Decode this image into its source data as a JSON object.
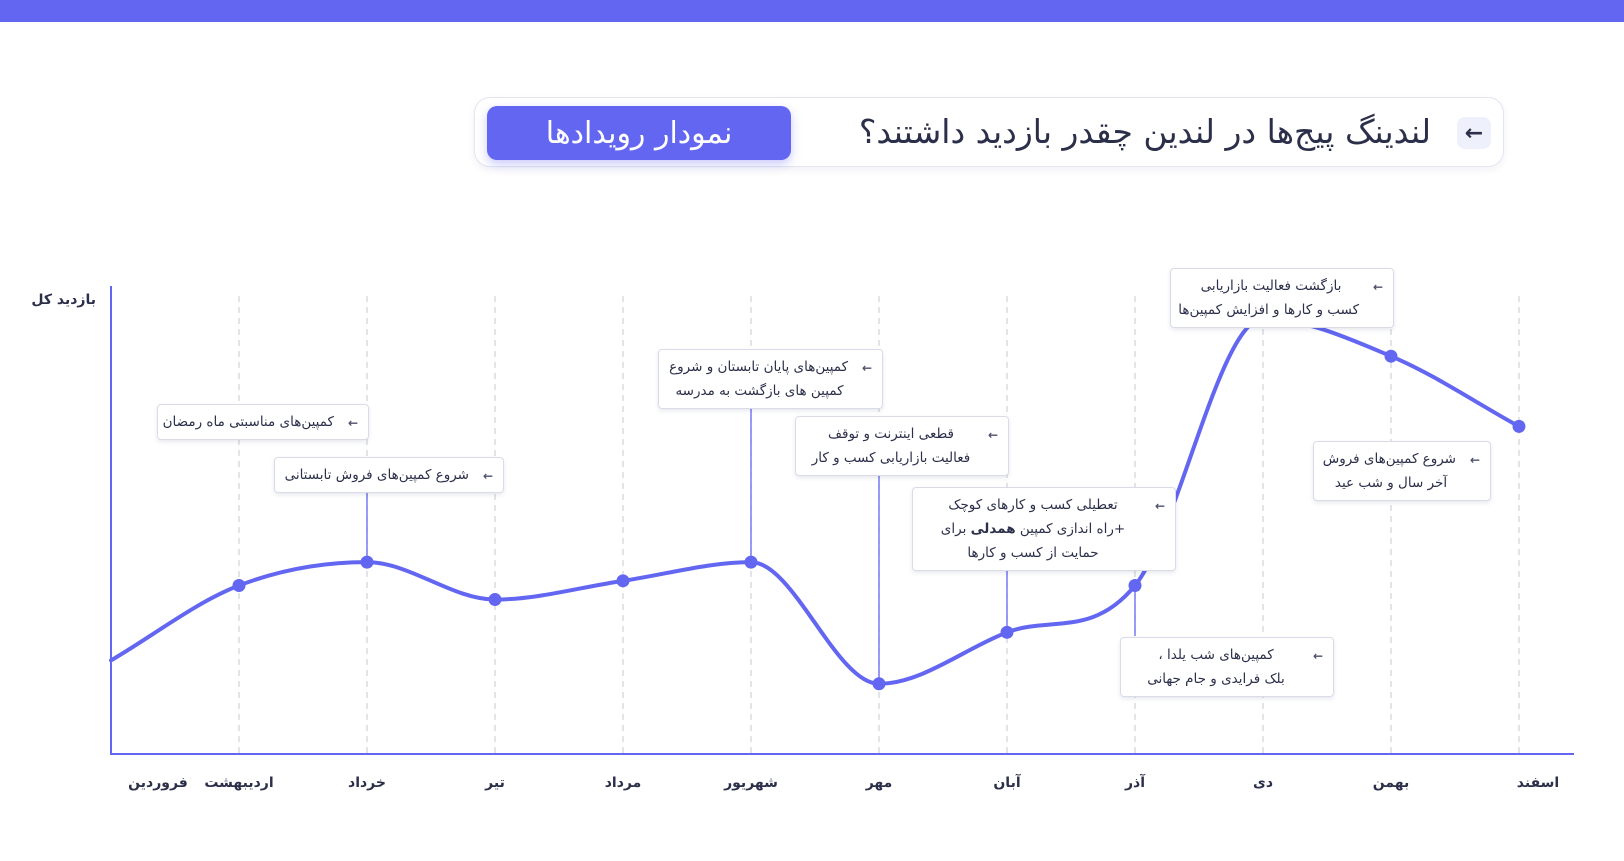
{
  "header": {
    "arrow_glyph": "←",
    "title": "لندینگ پیج‌ها در لندین چقدر بازدید داشتند؟",
    "button_label": "نمودار رویدادها"
  },
  "colors": {
    "accent": "#6366f1",
    "text": "#2b2f4a",
    "grid": "#cfd2dc"
  },
  "chart_data": {
    "type": "line",
    "ylabel": "بازدید کل",
    "categories": [
      "فروردین",
      "اردیبهشت",
      "خرداد",
      "تیر",
      "مرداد",
      "شهریور",
      "مهر",
      "آبان",
      "آذر",
      "دی",
      "بهمن",
      "اسفند"
    ],
    "series": [
      {
        "values": [
          20,
          36,
          41,
          33,
          37,
          41,
          15,
          26,
          36,
          93,
          85,
          70
        ]
      }
    ],
    "ylim": [
      0,
      100
    ],
    "grid": "vertical-dashed",
    "annotations": [
      {
        "month_index": 1,
        "lines": [
          "کمپین‌های مناسبتی ماه رمضان"
        ]
      },
      {
        "month_index": 2,
        "lines": [
          "شروع کمپین‌های فروش تابستانی"
        ]
      },
      {
        "month_index": 5,
        "lines": [
          "کمپین‌های پایان تابستان و شروع",
          "کمپین های بازگشت به مدرسه"
        ]
      },
      {
        "month_index": 6,
        "lines": [
          "قطعی اینترنت و توقف",
          "فعالیت بازاریابی کسب و کار"
        ]
      },
      {
        "month_index": 7,
        "lines": [
          "تعطیلی کسب و کارهای کوچک",
          "+راه اندازی کمپین <b>همدلی</b> برای",
          "حمایت از کسب و کارها"
        ]
      },
      {
        "month_index": 8,
        "lines": [
          "کمپین‌های شب یلدا ،",
          "بلک فرایدی و جام جهانی"
        ]
      },
      {
        "month_index": 9,
        "lines": [
          "بازگشت فعالیت بازاریابی",
          "کسب و کارها و افزایش کمپین‌ها"
        ]
      },
      {
        "month_index": 10,
        "lines": [
          "شروع کمپین‌های فروش",
          "آخر سال و شب عید"
        ]
      }
    ]
  }
}
